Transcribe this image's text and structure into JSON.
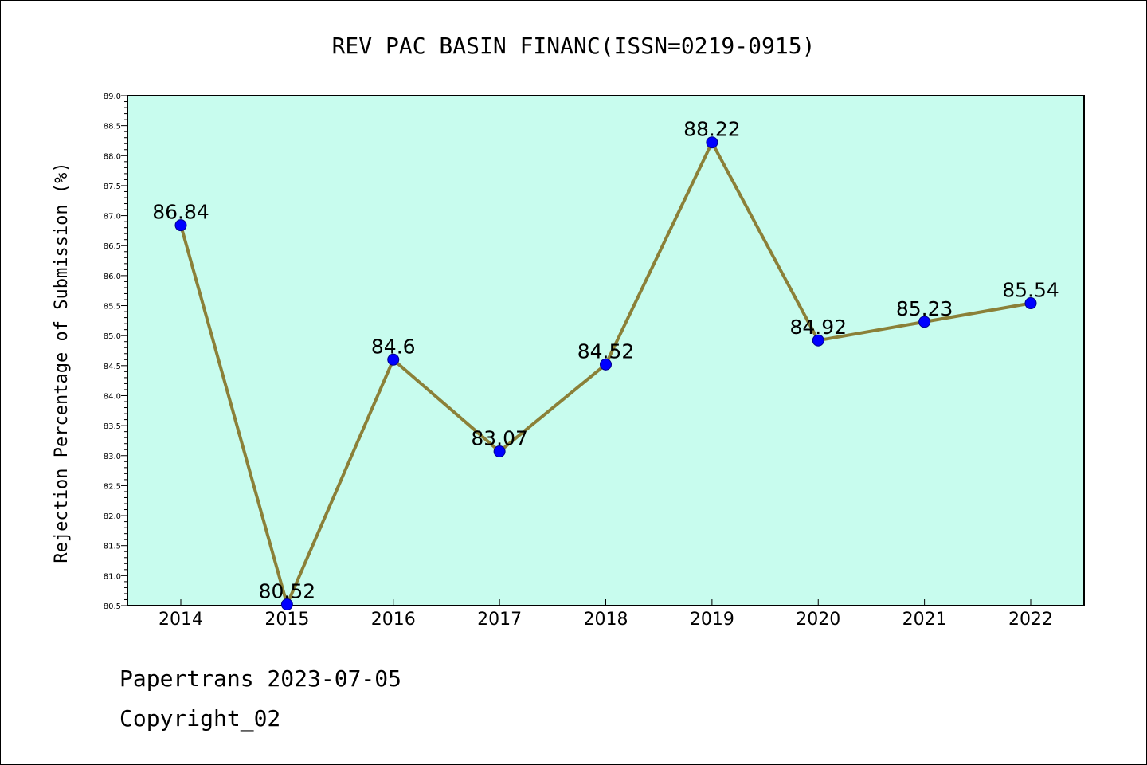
{
  "footer": {
    "line1": "Papertrans 2023-07-05",
    "line2": "Copyright_02"
  },
  "chart_data": {
    "type": "line",
    "title": "REV PAC BASIN FINANC(ISSN=0219-0915)",
    "xlabel": "",
    "ylabel": "Rejection Percentage of Submission (%)",
    "categories": [
      "2014",
      "2015",
      "2016",
      "2017",
      "2018",
      "2019",
      "2020",
      "2021",
      "2022"
    ],
    "series": [
      {
        "values": [
          86.84,
          80.52,
          84.6,
          83.07,
          84.52,
          88.22,
          84.92,
          85.23,
          85.54
        ],
        "data_labels": [
          "86.84",
          "80.52",
          "84.6",
          "83.07",
          "84.52",
          "88.22",
          "84.92",
          "85.23",
          "85.54"
        ],
        "line_color": "#8b8038",
        "marker_color": "#0000ff"
      }
    ],
    "ylim": [
      80.5,
      89.0
    ],
    "yticks": [
      "80.5",
      "81.0",
      "81.5",
      "82.0",
      "82.5",
      "83.0",
      "83.5",
      "84.0",
      "84.5",
      "85.0",
      "85.5",
      "86.0",
      "86.5",
      "87.0",
      "87.5",
      "88.0",
      "88.5",
      "89.0"
    ],
    "plot_background": "#c8fcee",
    "grid": false,
    "legend": "none"
  }
}
